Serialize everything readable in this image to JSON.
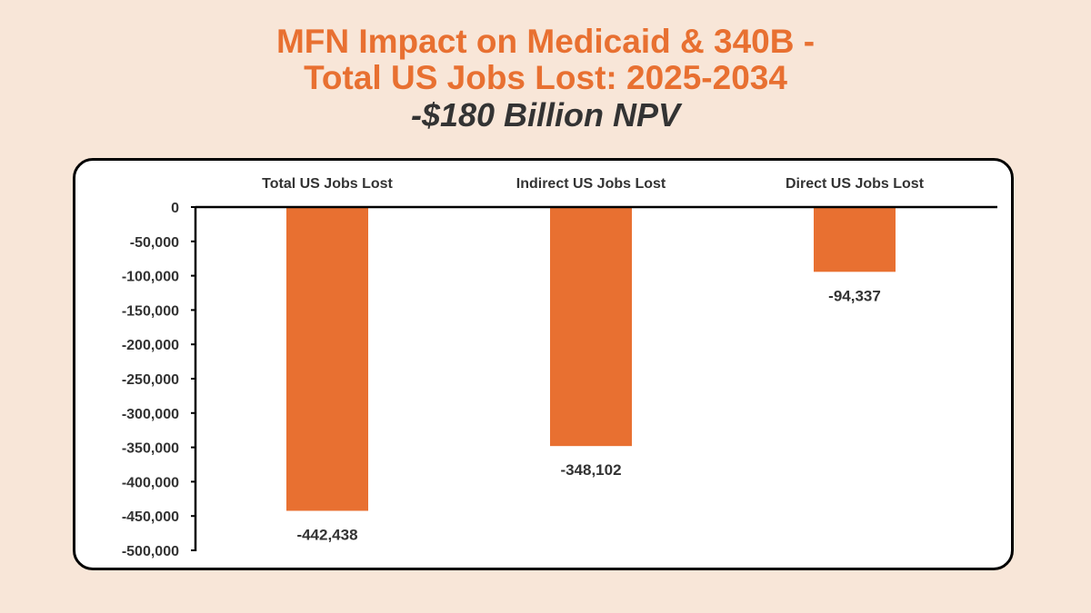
{
  "header": {
    "title_line1": "MFN Impact on Medicaid & 340B -",
    "title_line2": "Total US Jobs Lost: 2025-2034",
    "subtitle": "-$180 Billion NPV"
  },
  "chart_data": {
    "type": "bar",
    "title": "MFN Impact on Medicaid & 340B - Total US Jobs Lost: 2025-2034",
    "subtitle": "-$180 Billion NPV",
    "categories": [
      "Total US Jobs Lost",
      "Indirect US Jobs Lost",
      "Direct US Jobs Lost"
    ],
    "values": [
      -442438,
      -348102,
      -94337
    ],
    "data_labels": [
      "-442,438",
      "-348,102",
      "-94,337"
    ],
    "xlabel": "",
    "ylabel": "",
    "ylim": [
      -500000,
      0
    ],
    "yticks": [
      0,
      -50000,
      -100000,
      -150000,
      -200000,
      -250000,
      -300000,
      -350000,
      -400000,
      -450000,
      -500000
    ],
    "ytick_labels": [
      "0",
      "-50,000",
      "-100,000",
      "-150,000",
      "-200,000",
      "-250,000",
      "-300,000",
      "-350,000",
      "-400,000",
      "-450,000",
      "-500,000"
    ],
    "category_axis_position": "top",
    "grid": false,
    "legend": "none",
    "bar_color": "#e87031"
  }
}
